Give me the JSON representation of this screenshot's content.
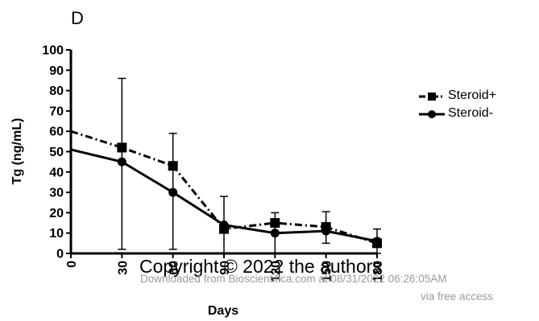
{
  "panel_label": "D",
  "watermark": {
    "copyright": "Copyright © 2022 the authors",
    "download": "Downloaded from Bioscientifica.com at 08/31/2022 06:26:05AM",
    "access": "via free access"
  },
  "chart_data": {
    "type": "line",
    "title": "",
    "xlabel": "Days",
    "ylabel": "Tg (ng/mL)",
    "xlim": [
      0,
      180
    ],
    "ylim": [
      0,
      100
    ],
    "x_ticks": [
      0,
      30,
      60,
      90,
      120,
      150,
      180
    ],
    "y_ticks": [
      0,
      10,
      20,
      30,
      40,
      50,
      60,
      70,
      80,
      90,
      100
    ],
    "grid": false,
    "legend_position": "right",
    "series": [
      {
        "name": "Steroid+",
        "marker": "square",
        "line_style": "dash-dot",
        "x": [
          0,
          30,
          60,
          90,
          120,
          150,
          180
        ],
        "y": [
          60,
          52,
          43,
          12,
          15,
          13,
          5
        ],
        "error_high": [
          null,
          86,
          59,
          28,
          20,
          20.5,
          12
        ],
        "error_low": [
          null,
          2,
          2,
          0,
          0,
          5,
          0
        ]
      },
      {
        "name": "Steroid-",
        "marker": "circle",
        "line_style": "solid",
        "x": [
          0,
          30,
          60,
          90,
          120,
          150,
          180
        ],
        "y": [
          51,
          45,
          30,
          14,
          10,
          11,
          6
        ],
        "error_high": [
          null,
          null,
          null,
          null,
          null,
          null,
          null
        ],
        "error_low": [
          null,
          null,
          null,
          null,
          null,
          null,
          null
        ]
      }
    ],
    "colors": {
      "axis": "#000000",
      "series": "#000000"
    }
  }
}
